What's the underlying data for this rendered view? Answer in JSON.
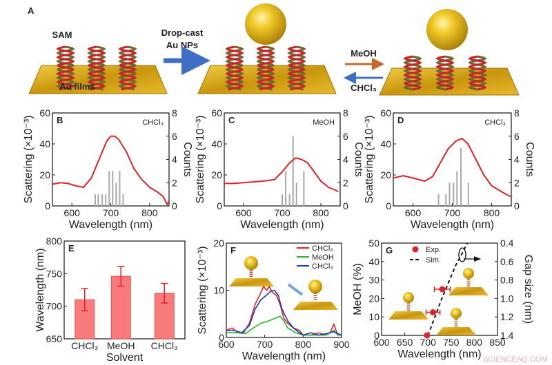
{
  "figure": {
    "watermark": "SCIENCEAQ.COM"
  },
  "schematic": {
    "panel_label": "A",
    "sam_label": "SAM",
    "film_label": "Au films",
    "step1_label_line1": "Drop-cast",
    "step1_label_line2": "Au NPs",
    "forward_label": "MeOH",
    "reverse_label": "CHCl₃",
    "colors": {
      "gold": "#d4a418",
      "gold_dark": "#9c7408",
      "arrow_blue": "#3f6fc4",
      "arrow_orange": "#c8692a",
      "helix_red": "#c0282d",
      "helix_olive": "#6f6a2a"
    }
  },
  "chart_data": [
    {
      "panel": "B",
      "type": "line+bar",
      "annotation": "CHCl₃",
      "xlabel": "Wavelength (nm)",
      "ylabel": "Scattering (×10⁻³)",
      "y2label": "Counts",
      "xlim": [
        550,
        850
      ],
      "ylim": [
        0,
        60
      ],
      "y2lim": [
        0,
        8
      ],
      "xticks": [
        600,
        700,
        800
      ],
      "yticks": [
        0,
        20,
        40,
        60
      ],
      "y2ticks": [
        0,
        2,
        4,
        6,
        8
      ],
      "line_color": "#e0202a",
      "bar_color": "#a8a8a8",
      "spectrum": {
        "x": [
          550,
          570,
          590,
          610,
          630,
          650,
          670,
          690,
          700,
          710,
          720,
          740,
          760,
          780,
          800,
          820,
          835,
          845,
          850
        ],
        "y": [
          14,
          15,
          14.5,
          13,
          12,
          18,
          30,
          42,
          45,
          45,
          43,
          35,
          24,
          17,
          12,
          9,
          6,
          1,
          3
        ]
      },
      "histogram": {
        "x": [
          660,
          668,
          678,
          687,
          696,
          705,
          714,
          723,
          732
        ],
        "counts": [
          1,
          1,
          1,
          1,
          3,
          3,
          2,
          3,
          1
        ]
      }
    },
    {
      "panel": "C",
      "type": "line+bar",
      "annotation": "MeOH",
      "xlabel": "Wavelength (nm)",
      "ylabel": "Scattering (×10⁻³)",
      "y2label": "Counts",
      "xlim": [
        550,
        850
      ],
      "ylim": [
        0,
        60
      ],
      "y2lim": [
        0,
        8
      ],
      "xticks": [
        600,
        700,
        800
      ],
      "yticks": [
        0,
        20,
        40,
        60
      ],
      "y2ticks": [
        0,
        2,
        4,
        6,
        8
      ],
      "line_color": "#e0202a",
      "bar_color": "#a8a8a8",
      "spectrum": {
        "x": [
          550,
          575,
          600,
          625,
          650,
          680,
          700,
          720,
          735,
          750,
          765,
          780,
          800,
          820,
          840,
          845
        ],
        "y": [
          14.5,
          14.5,
          15,
          15.5,
          16,
          17,
          22,
          28,
          31,
          30,
          28,
          23,
          16,
          12,
          10,
          9
        ]
      },
      "histogram": {
        "x": [
          700,
          709,
          719,
          728,
          737,
          756
        ],
        "counts": [
          1,
          3,
          1,
          6,
          2,
          3
        ]
      }
    },
    {
      "panel": "D",
      "type": "line+bar",
      "annotation": "CHCl₃",
      "xlabel": "Wavelength (nm)",
      "ylabel": "Scattering (×10⁻³)",
      "y2label": "Counts",
      "xlim": [
        550,
        850
      ],
      "ylim": [
        0,
        60
      ],
      "y2lim": [
        0,
        8
      ],
      "xticks": [
        600,
        700,
        800
      ],
      "yticks": [
        0,
        20,
        40,
        60
      ],
      "y2ticks": [
        0,
        2,
        4,
        6,
        8
      ],
      "line_color": "#e0202a",
      "bar_color": "#a8a8a8",
      "spectrum": {
        "x": [
          550,
          575,
          600,
          630,
          650,
          670,
          690,
          710,
          725,
          740,
          760,
          780,
          800,
          820,
          840,
          850
        ],
        "y": [
          18,
          19.5,
          18,
          16,
          19,
          28,
          37,
          42,
          43.5,
          40,
          30,
          20,
          13,
          10,
          7,
          6
        ]
      },
      "histogram": {
        "x": [
          665,
          684,
          693,
          703,
          712,
          722,
          741
        ],
        "counts": [
          1,
          1,
          2,
          2,
          3,
          5,
          2
        ]
      }
    },
    {
      "panel": "E",
      "type": "bar",
      "xlabel": "Solvent",
      "ylabel": "Wavelength (nm)",
      "categories": [
        "CHCl₃",
        "MeOH",
        "CHCl₃"
      ],
      "values": [
        710,
        746,
        720
      ],
      "errors": [
        17,
        15,
        15
      ],
      "ylim": [
        650,
        800
      ],
      "yticks": [
        650,
        700,
        750,
        800
      ],
      "bar_color": "#f77b7b",
      "error_color": "#e0202a"
    },
    {
      "panel": "F",
      "type": "line",
      "xlabel": "Wavelength (nm)",
      "ylabel": "Scattering (×10⁻³)",
      "xlim": [
        600,
        900
      ],
      "ylim": [
        0,
        20
      ],
      "xticks": [
        600,
        700,
        800,
        900
      ],
      "yticks": [
        0,
        10,
        20
      ],
      "legend": "top-right",
      "series": [
        {
          "name": "CHCl₃",
          "color": "#e0202a",
          "x": [
            600,
            615,
            630,
            645,
            660,
            675,
            690,
            697,
            705,
            712,
            720,
            730,
            740,
            750,
            760,
            775,
            790,
            800,
            820,
            840,
            860,
            870,
            880,
            890,
            900
          ],
          "y": [
            1.5,
            2,
            1,
            1,
            3,
            7,
            9.5,
            10.8,
            10,
            10.8,
            9.5,
            9,
            7,
            4,
            3,
            2,
            1.5,
            0.5,
            0.5,
            1,
            0.5,
            1,
            2.8,
            0.5,
            0.5
          ]
        },
        {
          "name": "MeOH",
          "color": "#22b52a",
          "x": [
            600,
            630,
            650,
            670,
            690,
            710,
            725,
            740,
            750,
            760,
            780,
            800,
            830,
            860,
            880,
            890,
            900
          ],
          "y": [
            1,
            1,
            0.8,
            2,
            3,
            3.5,
            4,
            4.5,
            3.5,
            2,
            1,
            0.5,
            0.5,
            0.5,
            1.5,
            0.5,
            0.5
          ]
        },
        {
          "name": "CHCl₃",
          "color": "#1a3fb0",
          "x": [
            600,
            620,
            640,
            660,
            675,
            690,
            705,
            715,
            725,
            735,
            745,
            760,
            775,
            790,
            800,
            820,
            840,
            860,
            880,
            900
          ],
          "y": [
            1.5,
            1.5,
            1,
            2.5,
            6,
            8,
            9,
            9.8,
            10,
            9,
            6,
            3.5,
            2,
            1,
            0.5,
            1,
            0.5,
            0.8,
            1.2,
            0.5
          ]
        }
      ]
    },
    {
      "panel": "G",
      "type": "scatter+line",
      "xlabel": "Wavelength (nm)",
      "ylabel": "MeOH (%)",
      "y2label": "Gap size (nm)",
      "xlim": [
        600,
        850
      ],
      "ylim": [
        0,
        50
      ],
      "y2lim": [
        1.4,
        0.4
      ],
      "xticks": [
        600,
        650,
        700,
        750,
        800,
        850
      ],
      "yticks": [
        0,
        10,
        20,
        30,
        40,
        50
      ],
      "y2ticks": [
        0.4,
        0.6,
        0.8,
        1.0,
        1.2,
        1.4
      ],
      "y2tick_labels": [
        "0.4",
        "0.6",
        "0.8",
        "1.0",
        "1.2",
        "1.4"
      ],
      "legend": "top-left",
      "experimental": {
        "name": "Exp.",
        "color": "#e0202a",
        "x": [
          698,
          711,
          731
        ],
        "y": [
          0,
          12.5,
          25
        ],
        "xerr": [
          0,
          15,
          17
        ]
      },
      "simulation": {
        "name": "Sim.",
        "color": "#111111",
        "x": [
          700,
          715,
          730,
          745,
          760,
          775,
          785
        ],
        "y": [
          0,
          10,
          20,
          29,
          38,
          45,
          50
        ]
      }
    }
  ]
}
